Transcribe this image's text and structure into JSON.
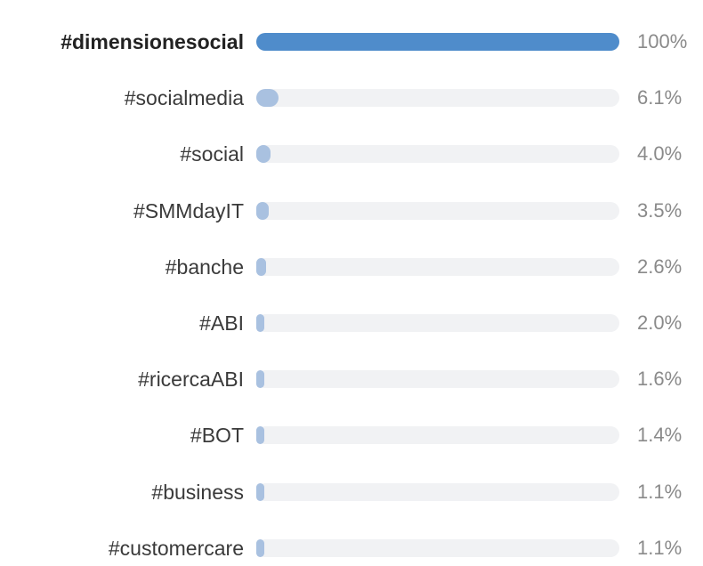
{
  "chart_data": {
    "type": "bar",
    "orientation": "horizontal",
    "title": "",
    "xlabel": "",
    "ylabel": "",
    "xlim": [
      0,
      100
    ],
    "grid": false,
    "legend": "none",
    "categories": [
      "#dimensionesocial",
      "#socialmedia",
      "#social",
      "#SMMdayIT",
      "#banche",
      "#ABI",
      "#ricercaABI",
      "#BOT",
      "#business",
      "#customercare"
    ],
    "values": [
      100,
      6.1,
      4.0,
      3.5,
      2.6,
      2.0,
      1.6,
      1.4,
      1.1,
      1.1
    ],
    "value_labels": [
      "100%",
      "6.1%",
      "4.0%",
      "3.5%",
      "2.6%",
      "2.0%",
      "1.6%",
      "1.4%",
      "1.1%",
      "1.1%"
    ],
    "colors": {
      "primary_bar": "#4f8ccb",
      "secondary_bar": "#a9c1e0",
      "track": "#f1f2f4"
    }
  }
}
